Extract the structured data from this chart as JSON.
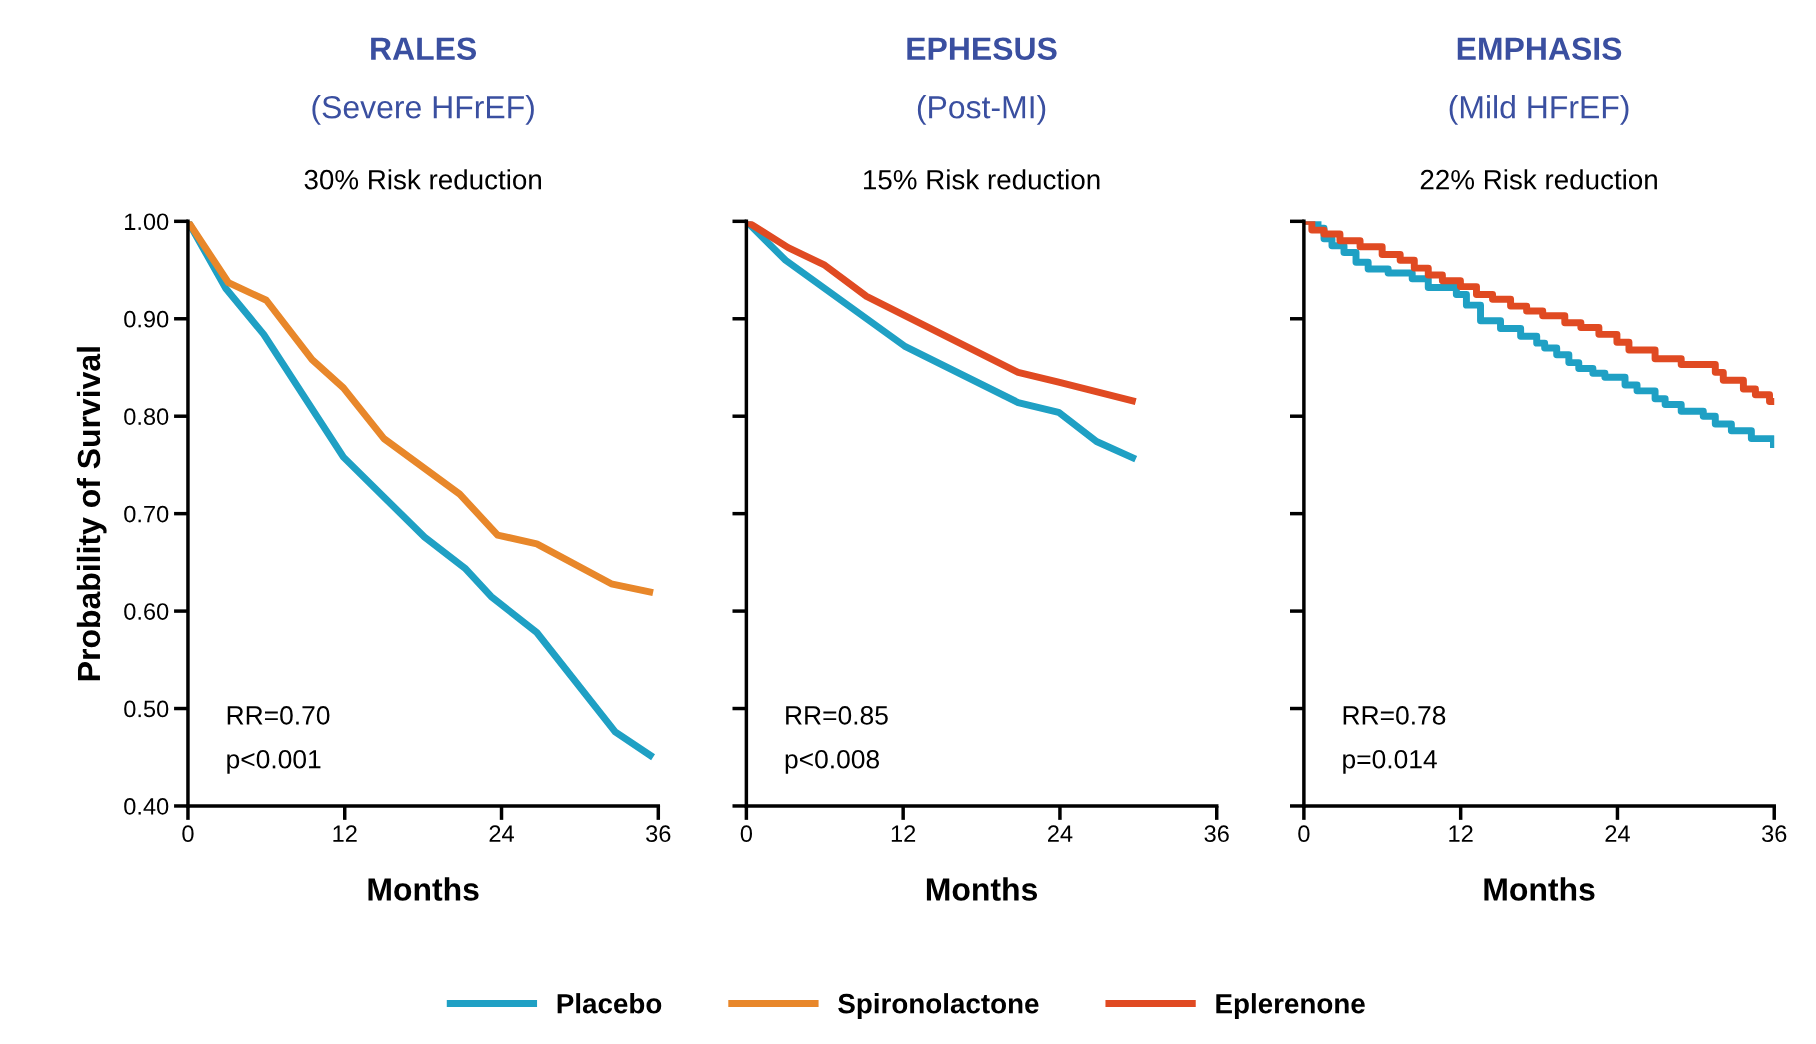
{
  "chart_data": [
    {
      "type": "line",
      "title": "RALES",
      "subtitle": "(Severe HFrEF)",
      "xlabel": "Months",
      "ylabel": "Probability of Survival",
      "annotations": [
        "30% Risk reduction",
        "RR=0.70",
        "p<0.001"
      ],
      "xlim": [
        0,
        36
      ],
      "xticks": [
        0,
        12,
        24,
        36
      ],
      "ylim": [
        0.4,
        1.0
      ],
      "yticks": [
        {
          "value": 0.4,
          "label": "0.40"
        },
        {
          "value": 0.5,
          "label": "0.50"
        },
        {
          "value": 0.6,
          "label": "0.60"
        },
        {
          "value": 0.7,
          "label": "0.70"
        },
        {
          "value": 0.8,
          "label": "0.80"
        },
        {
          "value": 0.9,
          "label": "0.90"
        },
        {
          "value": 1.0,
          "label": "1.00"
        }
      ],
      "grid": false,
      "legend": "bottom",
      "series": [
        {
          "name": "Placebo",
          "color": "#1fa0c4",
          "x": [
            0,
            2.9,
            5.8,
            11.9,
            18.1,
            21.2,
            23.2,
            26.7,
            32.7,
            35.6
          ],
          "values": [
            1.0,
            0.931,
            0.884,
            0.758,
            0.676,
            0.644,
            0.615,
            0.578,
            0.476,
            0.45
          ]
        },
        {
          "name": "Spironolactone",
          "color": "#e8872a",
          "x": [
            0,
            3.1,
            6.0,
            9.5,
            11.9,
            15.0,
            20.8,
            23.7,
            26.7,
            32.4,
            35.6
          ],
          "values": [
            1.0,
            0.937,
            0.919,
            0.858,
            0.829,
            0.777,
            0.72,
            0.678,
            0.669,
            0.628,
            0.619
          ]
        }
      ]
    },
    {
      "type": "line",
      "title": "EPHESUS",
      "subtitle": "(Post-MI)",
      "xlabel": "Months",
      "annotations": [
        "15% Risk reduction",
        "RR=0.85",
        "p<0.008"
      ],
      "xlim": [
        0,
        36
      ],
      "xticks": [
        0,
        12,
        24,
        36
      ],
      "ylim": [
        0.4,
        1.0
      ],
      "yticks": [
        {
          "value": 0.4,
          "label": null
        },
        {
          "value": 0.5,
          "label": null
        },
        {
          "value": 0.6,
          "label": null
        },
        {
          "value": 0.7,
          "label": null
        },
        {
          "value": 0.8,
          "label": null
        },
        {
          "value": 0.9,
          "label": null
        },
        {
          "value": 1.0,
          "label": null
        }
      ],
      "tick_labels": "x",
      "grid": false,
      "legend": "bottom",
      "series": [
        {
          "name": "Placebo",
          "color": "#1fa0c4",
          "x": [
            0,
            3.0,
            12.1,
            20.8,
            23.9,
            26.8,
            29.8
          ],
          "values": [
            1.0,
            0.96,
            0.872,
            0.814,
            0.804,
            0.774,
            0.756
          ]
        },
        {
          "name": "Eplerenone",
          "color": "#e04a22",
          "x": [
            0,
            3.2,
            6.0,
            9.2,
            20.8,
            23.9,
            29.8
          ],
          "values": [
            1.0,
            0.973,
            0.955,
            0.923,
            0.845,
            0.835,
            0.815
          ]
        }
      ]
    },
    {
      "type": "step",
      "title": "EMPHASIS",
      "subtitle": "(Mild HFrEF)",
      "xlabel": "Months",
      "annotations": [
        "22% Risk reduction",
        "RR=0.78",
        "p=0.014"
      ],
      "xlim": [
        0,
        36
      ],
      "xticks": [
        0,
        12,
        24,
        36
      ],
      "ylim": [
        0.4,
        1.0
      ],
      "yticks": [
        {
          "value": 0.4,
          "label": null
        },
        {
          "value": 0.5,
          "label": null
        },
        {
          "value": 0.6,
          "label": null
        },
        {
          "value": 0.7,
          "label": null
        },
        {
          "value": 0.8,
          "label": null
        },
        {
          "value": 0.9,
          "label": null
        },
        {
          "value": 1.0,
          "label": null
        }
      ],
      "tick_labels": "x",
      "grid": false,
      "legend": "bottom",
      "series": [
        {
          "name": "Placebo",
          "color": "#1fa0c4",
          "x": [
            0,
            1.08,
            1.54,
            2.15,
            3.07,
            3.99,
            4.92,
            6.45,
            8.29,
            9.52,
            11.67,
            12.44,
            13.52,
            15.05,
            16.59,
            17.82,
            18.43,
            19.35,
            20.28,
            21.04,
            22.12,
            23.04,
            24.58,
            25.5,
            26.88,
            27.65,
            28.88,
            30.57,
            31.49,
            32.72,
            34.25,
            35.94
          ],
          "values": [
            1.0,
            0.993,
            0.982,
            0.975,
            0.968,
            0.958,
            0.951,
            0.947,
            0.941,
            0.932,
            0.925,
            0.914,
            0.898,
            0.89,
            0.882,
            0.875,
            0.87,
            0.863,
            0.855,
            0.849,
            0.844,
            0.84,
            0.832,
            0.826,
            0.818,
            0.812,
            0.805,
            0.8,
            0.792,
            0.785,
            0.777,
            0.771
          ]
        },
        {
          "name": "Eplerenone",
          "color": "#e04a22",
          "x": [
            0,
            0.61,
            1.54,
            2.76,
            4.3,
            5.99,
            7.37,
            8.45,
            9.52,
            10.6,
            11.98,
            13.21,
            14.44,
            15.82,
            17.05,
            18.28,
            19.97,
            21.2,
            22.58,
            23.96,
            24.88,
            26.88,
            28.88,
            31.49,
            32.1,
            33.64,
            34.56,
            35.64,
            36
          ],
          "values": [
            1.0,
            0.991,
            0.987,
            0.98,
            0.974,
            0.966,
            0.96,
            0.952,
            0.945,
            0.939,
            0.933,
            0.925,
            0.92,
            0.913,
            0.908,
            0.903,
            0.896,
            0.891,
            0.884,
            0.876,
            0.868,
            0.859,
            0.853,
            0.845,
            0.837,
            0.828,
            0.822,
            0.815,
            0.815
          ]
        }
      ]
    }
  ]
}
